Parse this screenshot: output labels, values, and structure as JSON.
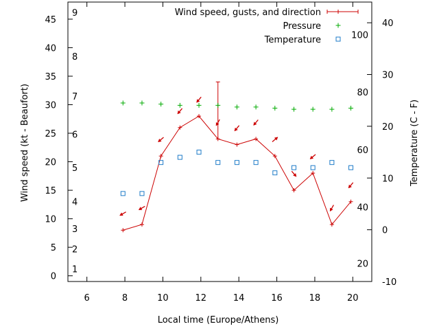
{
  "chart_data": {
    "type": "line",
    "xlabel": "Local time (Europe/Athens)",
    "ylabel_left": "Wind speed (kt - Beaufort)",
    "ylabel_right": "Temperature (C - F)",
    "x_ticks": [
      "6",
      "8",
      "10",
      "12",
      "14",
      "16",
      "18",
      "20"
    ],
    "x_tick_values": [
      6,
      8,
      10,
      12,
      14,
      16,
      18,
      20
    ],
    "xlim": [
      5,
      21
    ],
    "y_ticks": [
      "0",
      "5",
      "10",
      "15",
      "20",
      "25",
      "30",
      "35",
      "40",
      "45"
    ],
    "y_tick_values": [
      0,
      5,
      10,
      15,
      20,
      25,
      30,
      35,
      40,
      45
    ],
    "ylim": [
      -1,
      48
    ],
    "y2_ticks": [
      "-10",
      "0",
      "10",
      "20",
      "30",
      "40"
    ],
    "y2_tick_values": [
      -10,
      0,
      10,
      20,
      30,
      40
    ],
    "y2lim": [
      -10,
      44
    ],
    "fahrenheit_labels": [
      {
        "label": "20",
        "celsius": -6.5
      },
      {
        "label": "40",
        "celsius": 4.4
      },
      {
        "label": "60",
        "celsius": 15.5
      },
      {
        "label": "80",
        "celsius": 26.6
      },
      {
        "label": "100",
        "celsius": 37.7
      }
    ],
    "beaufort_labels": [
      {
        "label": "1",
        "kt": 1.2
      },
      {
        "label": "2",
        "kt": 4.7
      },
      {
        "label": "3",
        "kt": 8.3
      },
      {
        "label": "4",
        "kt": 13.0
      },
      {
        "label": "5",
        "kt": 19.0
      },
      {
        "label": "6",
        "kt": 24.8
      },
      {
        "label": "7",
        "kt": 31.5
      },
      {
        "label": "8",
        "kt": 38.5
      },
      {
        "label": "9",
        "kt": 46.2
      }
    ],
    "legend": {
      "position": "top-right",
      "entries": [
        "Wind speed, gusts, and direction",
        "Pressure",
        "Temperature"
      ]
    },
    "series": [
      {
        "name": "Wind speed, gusts, and direction",
        "color": "#cc0000",
        "x": [
          7.9,
          8.9,
          9.9,
          10.9,
          11.9,
          12.9,
          13.9,
          14.9,
          15.9,
          16.9,
          17.9,
          18.9,
          19.9
        ],
        "values": [
          8,
          9,
          21,
          26,
          28,
          24,
          23,
          24,
          21,
          15,
          18,
          9,
          13
        ],
        "gusts": [
          null,
          null,
          null,
          null,
          null,
          34,
          null,
          null,
          null,
          null,
          null,
          null,
          null
        ],
        "direction_deg": [
          60,
          60,
          50,
          40,
          40,
          30,
          40,
          40,
          230,
          320,
          50,
          30,
          40
        ]
      },
      {
        "name": "Pressure",
        "color": "#00aa00",
        "x": [
          7.9,
          8.9,
          9.9,
          10.9,
          11.9,
          12.9,
          13.9,
          14.9,
          15.9,
          16.9,
          17.9,
          18.9,
          19.9
        ],
        "values": [
          30.3,
          30.3,
          30.1,
          29.9,
          29.9,
          29.9,
          29.6,
          29.6,
          29.4,
          29.2,
          29.2,
          29.2,
          29.4
        ]
      },
      {
        "name": "Temperature",
        "color": "#1e7bc8",
        "x": [
          7.9,
          8.9,
          9.9,
          10.9,
          11.9,
          12.9,
          13.9,
          14.9,
          15.9,
          16.9,
          17.9,
          18.9,
          19.9
        ],
        "values": [
          7,
          7,
          13,
          14,
          15,
          13,
          13,
          13,
          11,
          12,
          12,
          13,
          12
        ]
      }
    ]
  }
}
